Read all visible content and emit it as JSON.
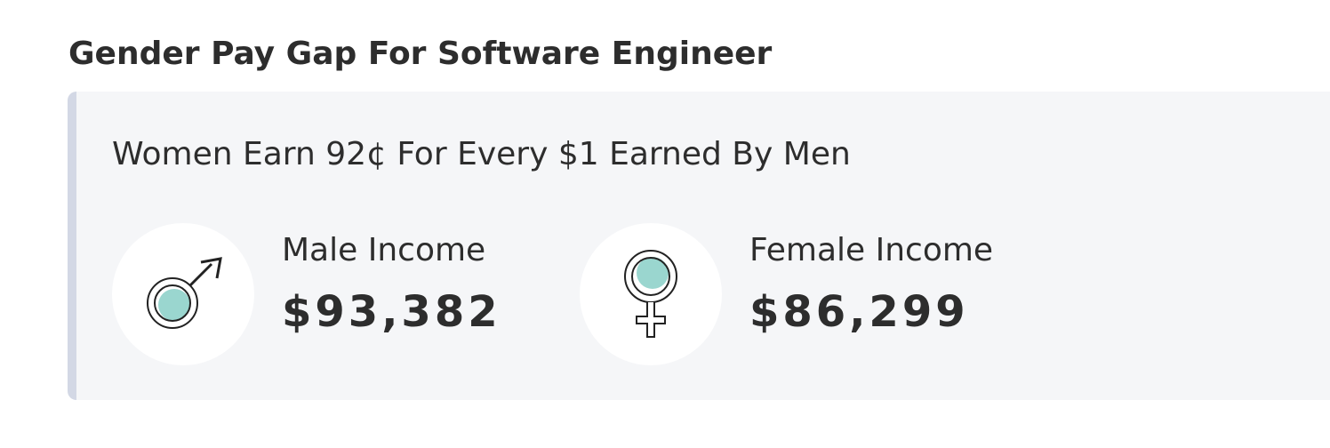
{
  "header": {
    "title": "Gender Pay Gap For Software Engineer"
  },
  "card": {
    "summary": "Women Earn 92¢ For Every $1 Earned By Men",
    "items": [
      {
        "label": "Male Income",
        "value": "$93,382"
      },
      {
        "label": "Female Income",
        "value": "$86,299"
      }
    ]
  }
}
